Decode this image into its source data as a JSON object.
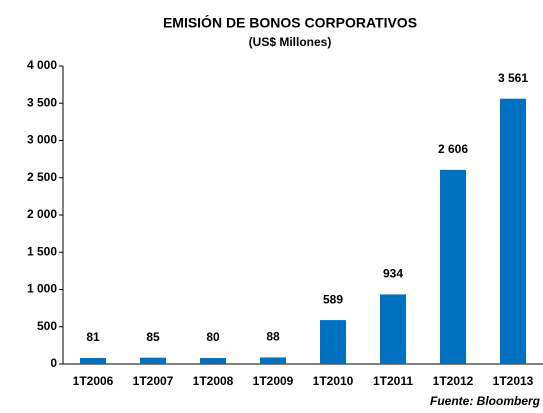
{
  "chart_data": {
    "type": "bar",
    "title": "EMISIÓN DE BONOS  CORPORATIVOS",
    "subtitle": "(US$ Millones)",
    "source": "Fuente: Bloomberg",
    "categories": [
      "1T2006",
      "1T2007",
      "1T2008",
      "1T2009",
      "1T2010",
      "1T2011",
      "1T2012",
      "1T2013"
    ],
    "values": [
      81,
      85,
      80,
      88,
      589,
      934,
      2606,
      3561
    ],
    "value_labels": [
      "81",
      "85",
      "80",
      "88",
      "589",
      "934",
      "2 606",
      "3 561"
    ],
    "color": "#0070c0",
    "ylim": [
      0,
      4000
    ],
    "yticks": [
      0,
      500,
      {
        "value": 1000,
        "label": "1 000"
      },
      {
        "value": 1500,
        "label": "1 500"
      },
      {
        "value": 2000,
        "label": "2 000"
      },
      {
        "value": 2500,
        "label": "2 500"
      },
      {
        "value": 3000,
        "label": "3 000"
      },
      {
        "value": 3500,
        "label": "3 500"
      },
      {
        "value": 4000,
        "label": "4 000"
      }
    ],
    "grid": false
  }
}
